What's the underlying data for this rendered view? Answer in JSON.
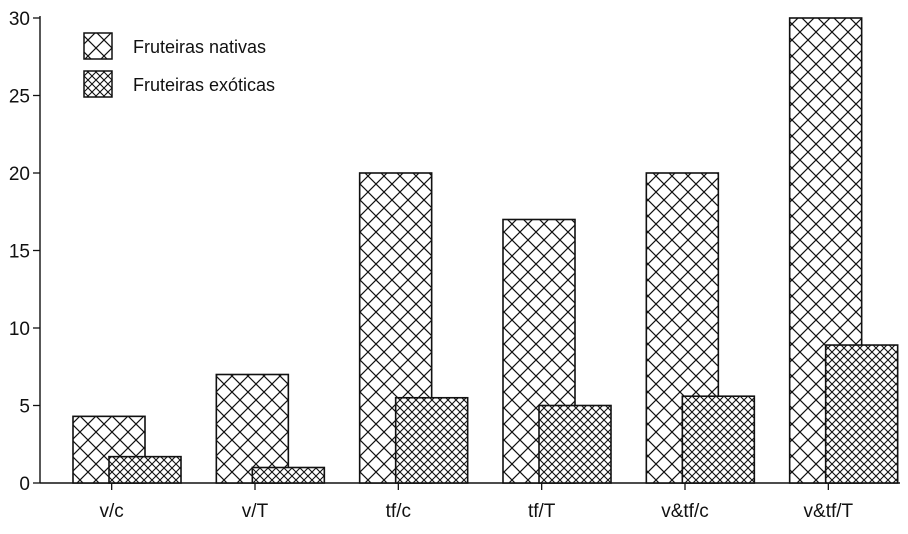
{
  "chart_data": {
    "type": "bar",
    "title": "",
    "xlabel": "",
    "ylabel": "",
    "categories": [
      "v/c",
      "v/T",
      "tf/c",
      "tf/T",
      "v&tf/c",
      "v&tf/T"
    ],
    "series": [
      {
        "name": "Fruteiras nativas",
        "values": [
          4.3,
          7.0,
          20.0,
          17.0,
          20.0,
          30.0
        ]
      },
      {
        "name": "Fruteiras exóticas",
        "values": [
          1.7,
          1.0,
          5.5,
          5.0,
          5.6,
          8.9
        ]
      }
    ],
    "ylim": [
      0,
      30
    ],
    "yticks": [
      0,
      5,
      10,
      15,
      20,
      25,
      30
    ],
    "grid": false,
    "legend_position": "top-left"
  }
}
